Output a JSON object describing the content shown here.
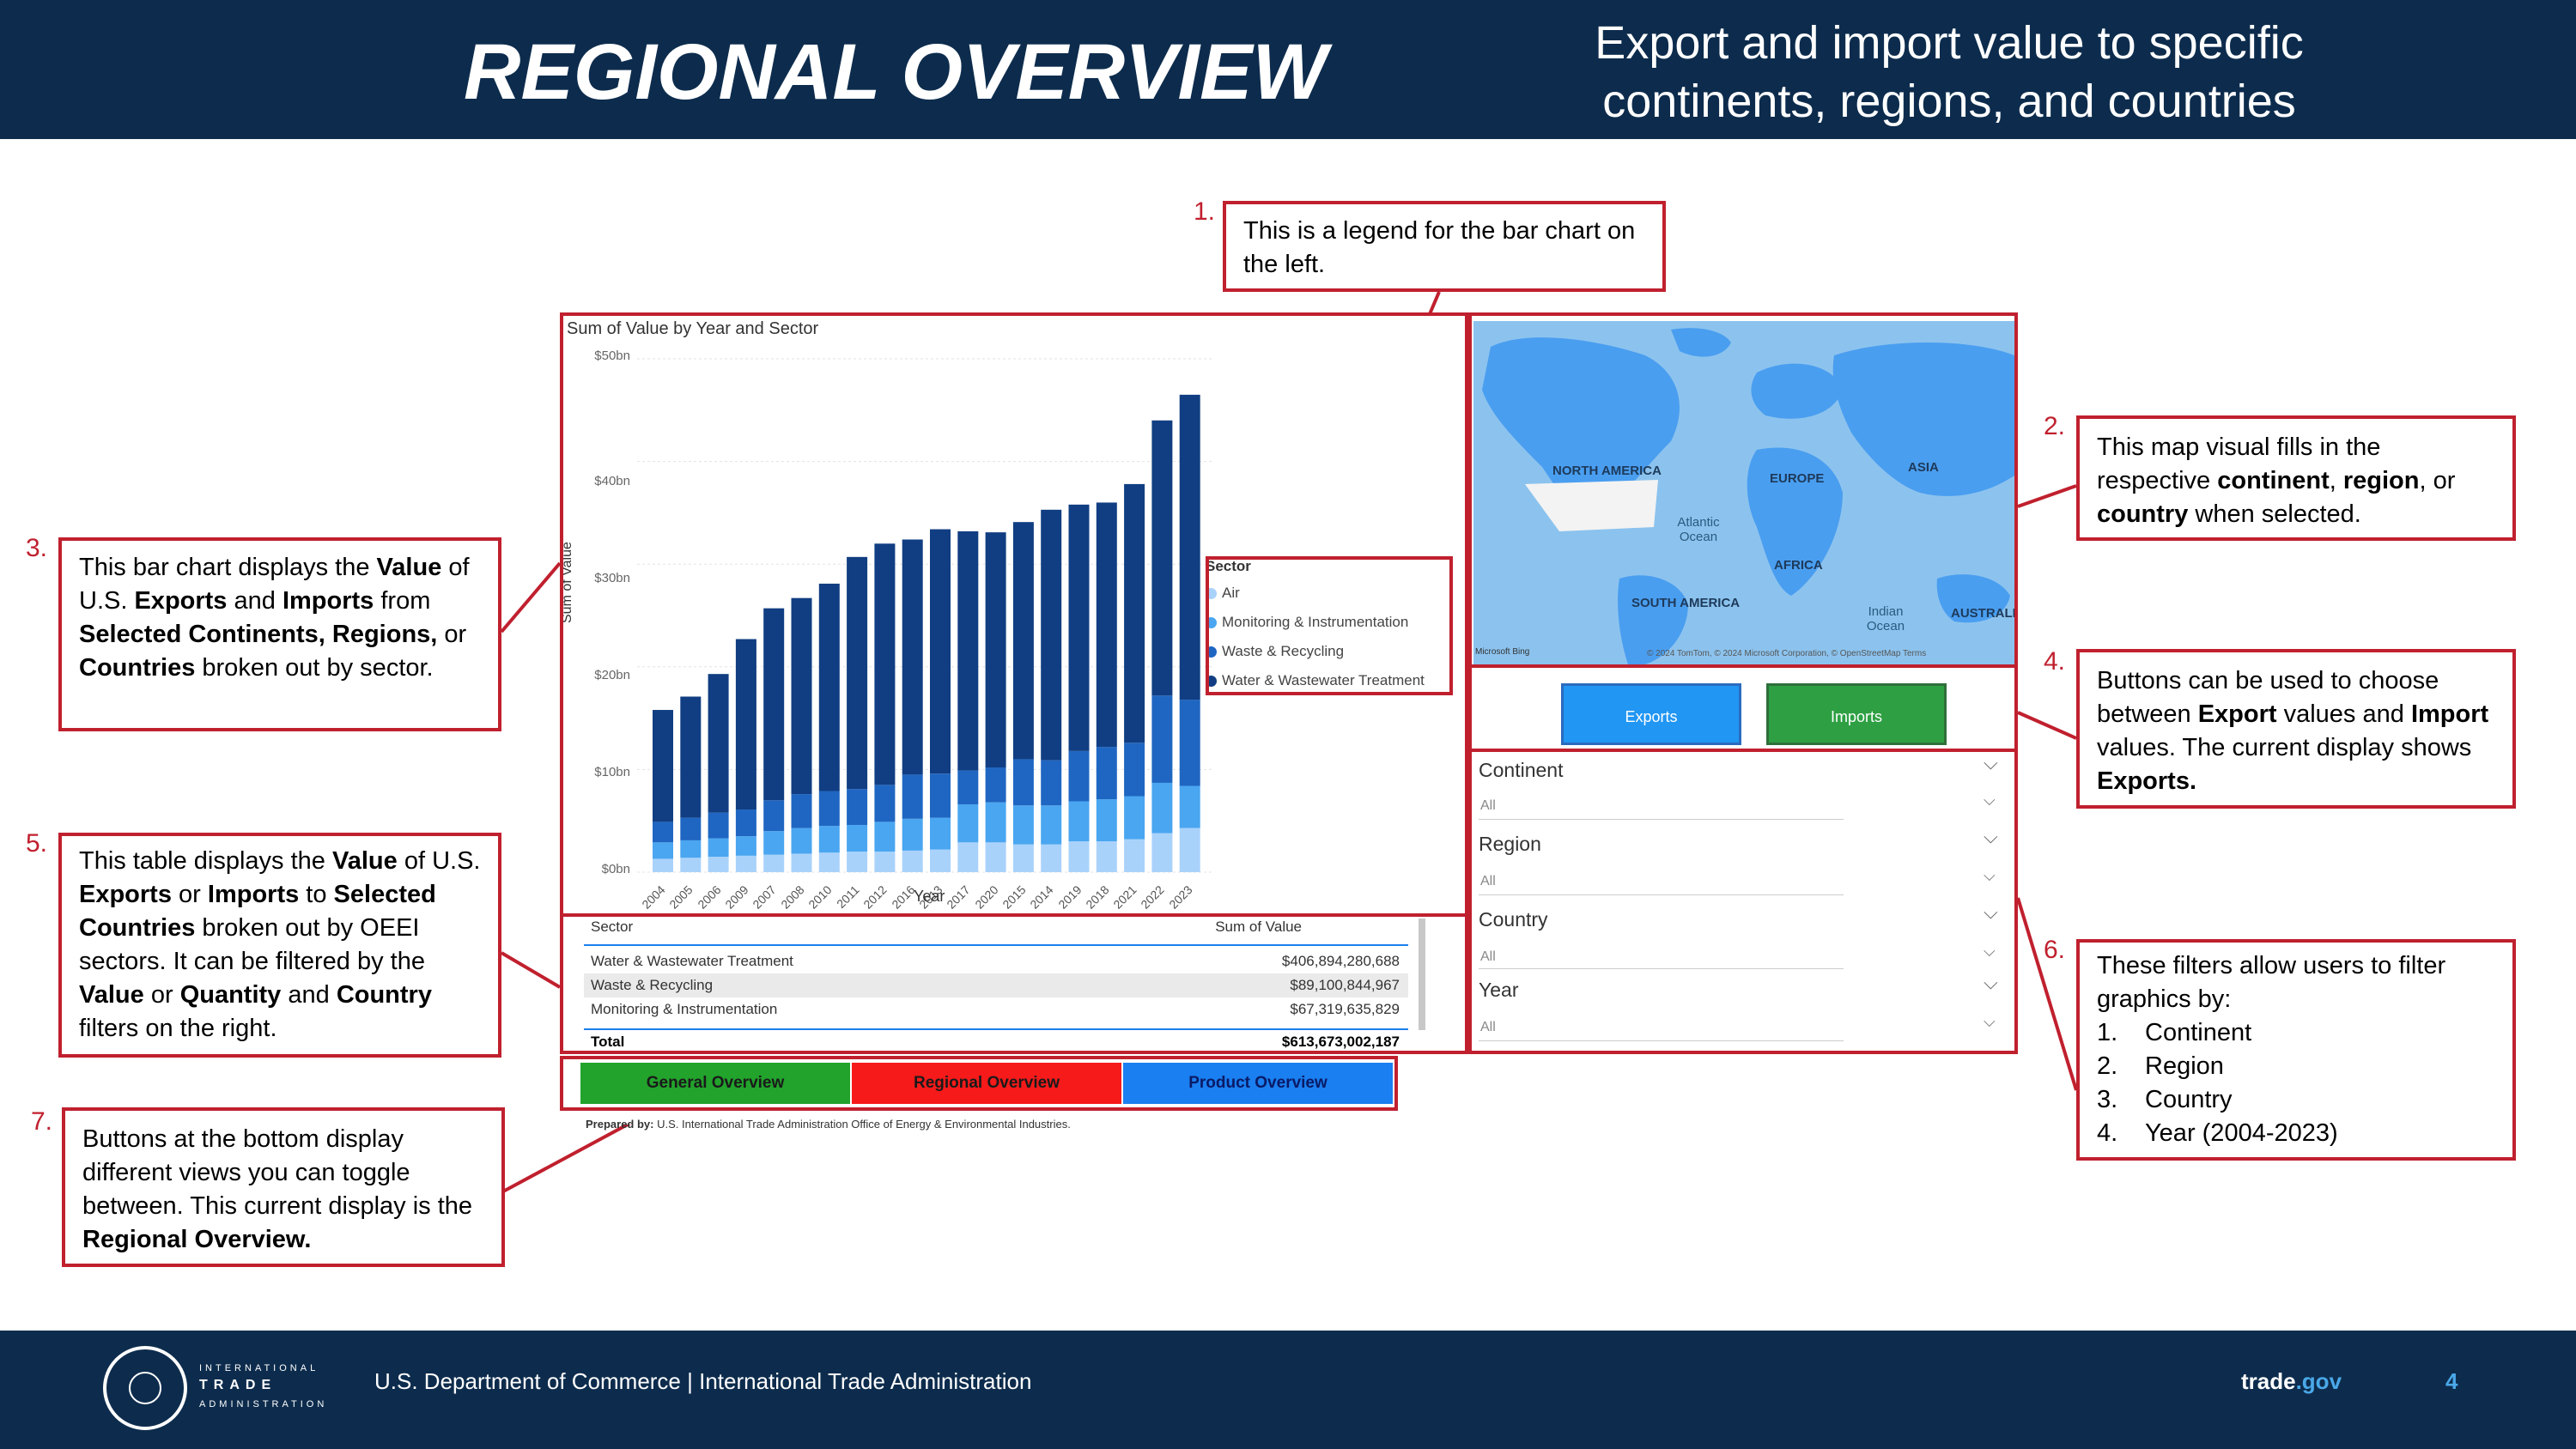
{
  "header": {
    "title": "REGIONAL OVERVIEW",
    "subtitle_line1": "Export and import value to specific",
    "subtitle_line2": "continents, regions, and countries"
  },
  "callouts": [
    {
      "number": "1.",
      "text": "This is a legend for the bar chart on the left."
    },
    {
      "number": "2.",
      "text": "This map visual fills in the respective continent, region, or country when selected."
    },
    {
      "number": "3.",
      "text": "This bar chart displays the Value of U.S. Exports and Imports from Selected Continents, Regions, or Countries broken out by sector."
    },
    {
      "number": "4.",
      "text": "Buttons can be used to choose between Export values and Import values. The current display shows Exports."
    },
    {
      "number": "5.",
      "text": "This table displays the Value of U.S. Exports or Imports to Selected Countries broken out by OEEI sectors. It can be filtered by the Value or Quantity and Country filters on the right."
    },
    {
      "number": "6.",
      "text": "These filters allow users to filter graphics by:",
      "list": [
        "Continent",
        "Region",
        "Country",
        "Year (2004-2023)"
      ]
    },
    {
      "number": "7.",
      "text": "Buttons at the bottom display different views you can toggle between. This current display is the Regional Overview."
    }
  ],
  "chart_data": {
    "type": "bar",
    "title": "Sum of Value by Year and Sector",
    "xlabel": "Year",
    "ylabel": "Sum of Value",
    "ylim": [
      0,
      50
    ],
    "y_tick_labels": [
      "$0bn",
      "$10bn",
      "$20bn",
      "$30bn",
      "$40bn",
      "$50bn"
    ],
    "stacked": true,
    "categories": [
      "2004",
      "2005",
      "2006",
      "2009",
      "2007",
      "2008",
      "2010",
      "2011",
      "2012",
      "2016",
      "2013",
      "2017",
      "2020",
      "2015",
      "2014",
      "2019",
      "2018",
      "2021",
      "2022",
      "2023"
    ],
    "series": [
      {
        "name": "Air",
        "color": "#a9d2fb",
        "values": [
          1.3,
          1.4,
          1.5,
          1.6,
          1.7,
          1.8,
          1.9,
          2.0,
          2.0,
          2.1,
          2.2,
          2.9,
          2.9,
          2.7,
          2.7,
          3.0,
          3.0,
          3.2,
          3.8,
          4.3
        ]
      },
      {
        "name": "Monitoring & Instrumentation",
        "color": "#4aa6f0",
        "values": [
          1.6,
          1.7,
          1.8,
          1.9,
          2.3,
          2.5,
          2.6,
          2.6,
          2.9,
          3.1,
          3.1,
          3.7,
          3.9,
          3.8,
          3.8,
          3.9,
          4.1,
          4.2,
          4.9,
          4.1
        ]
      },
      {
        "name": "Waste & Recycling",
        "color": "#1f66c2",
        "values": [
          2.0,
          2.2,
          2.5,
          2.6,
          3.0,
          3.3,
          3.4,
          3.5,
          3.6,
          4.3,
          4.3,
          3.3,
          3.4,
          4.5,
          4.4,
          4.9,
          5.1,
          5.2,
          8.5,
          8.4
        ]
      },
      {
        "name": "Water & Wastewater Treatment",
        "color": "#113e82",
        "values": [
          10.9,
          11.8,
          13.5,
          16.6,
          18.7,
          19.1,
          20.2,
          22.6,
          23.5,
          22.9,
          23.8,
          23.3,
          22.9,
          23.1,
          24.4,
          24.0,
          23.8,
          25.2,
          26.8,
          29.7
        ]
      }
    ],
    "legend": {
      "title": "Sector",
      "position": "right"
    }
  },
  "map": {
    "labels": {
      "north_america": "NORTH AMERICA",
      "europe": "EUROPE",
      "asia": "ASIA",
      "africa": "AFRICA",
      "south_america": "SOUTH AMERICA",
      "australia": "AUSTRALI",
      "atlantic": "Atlantic Ocean",
      "indian": "Indian Ocean"
    },
    "credit_left": "Microsoft Bing",
    "credit_right": "© 2024 TomTom, © 2024 Microsoft Corporation, © OpenStreetMap  Terms"
  },
  "toggle_buttons": {
    "exports": "Exports",
    "imports": "Imports"
  },
  "filters": [
    {
      "label": "Continent",
      "value": "All"
    },
    {
      "label": "Region",
      "value": "All"
    },
    {
      "label": "Country",
      "value": "All"
    },
    {
      "label": "Year",
      "value": "All"
    }
  ],
  "table": {
    "headers": [
      "Sector",
      "Sum of Value"
    ],
    "rows": [
      [
        "Water & Wastewater Treatment",
        "$406,894,280,688"
      ],
      [
        "Waste & Recycling",
        "$89,100,844,967"
      ],
      [
        "Monitoring & Instrumentation",
        "$67,319,635,829"
      ]
    ],
    "total_label": "Total",
    "total_value": "$613,673,002,187"
  },
  "nav_buttons": {
    "general": "General Overview",
    "regional": "Regional Overview",
    "product": "Product Overview"
  },
  "prepared_by_label": "Prepared by:",
  "prepared_by_text": "U.S. International Trade Administration Office of Energy & Environmental Industries.",
  "footer": {
    "ita_line1": "INTERNATIONAL",
    "ita_line2": "TRADE",
    "ita_line3": "ADMINISTRATION",
    "org": "U.S. Department of Commerce | International Trade Administration",
    "site_trade": "trade",
    "site_gov": ".gov",
    "page": "4"
  },
  "colors": {
    "header_bg": "#0d2c4d",
    "callout_border": "#c0202e"
  }
}
